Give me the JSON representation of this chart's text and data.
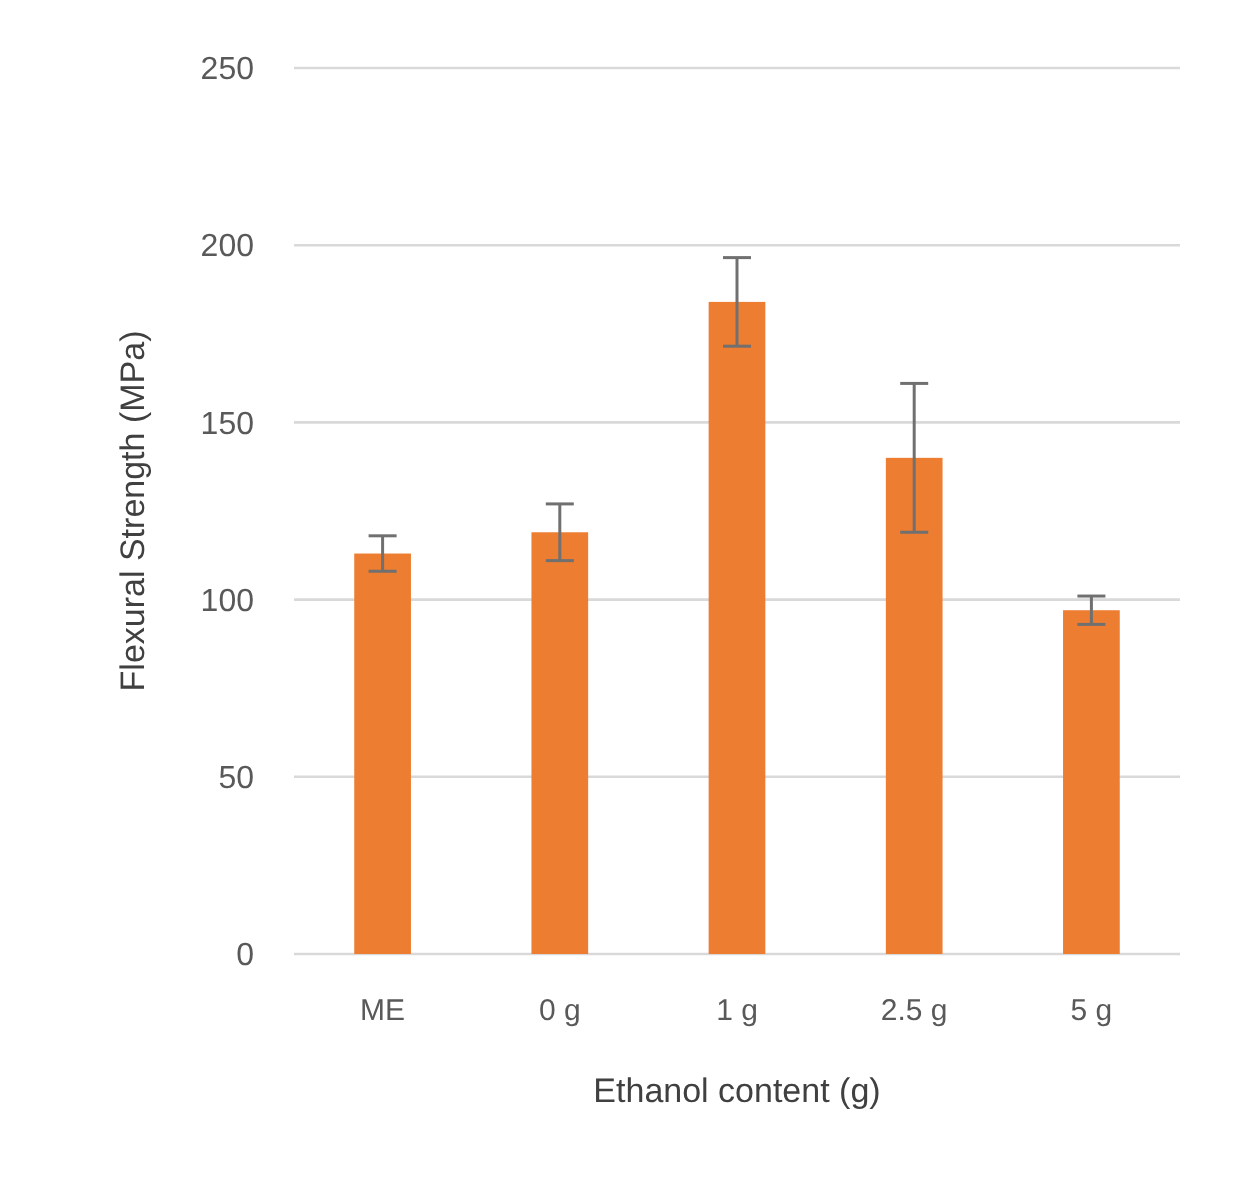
{
  "chart_data": {
    "type": "bar",
    "xlabel": "Ethanol content (g)",
    "ylabel": "Flexural Strength (MPa)",
    "categories": [
      "ME",
      "0 g",
      "1 g",
      "2.5 g",
      "5 g"
    ],
    "values": [
      113,
      119,
      184,
      140,
      97
    ],
    "errors": [
      5,
      8,
      12.5,
      21,
      4
    ],
    "color": "#ed7d31",
    "ylim": [
      0,
      250
    ],
    "yticks": [
      0,
      50,
      100,
      150,
      200,
      250
    ],
    "grid": "y"
  }
}
